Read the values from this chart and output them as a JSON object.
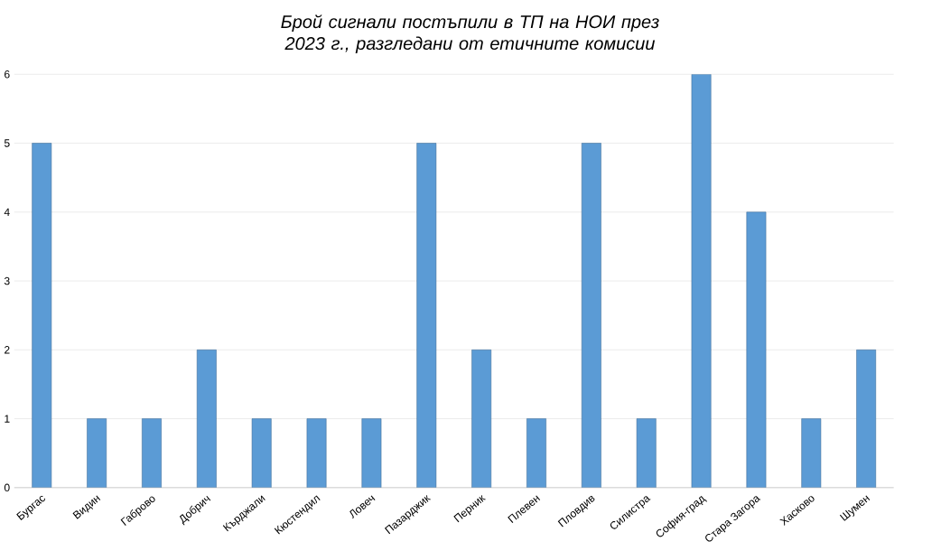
{
  "chart_data": {
    "type": "bar",
    "title": "Брой сигнали постъпили в ТП на НОИ през 2023 г., разгледани от етичните комисии",
    "categories": [
      "Бургас",
      "Видин",
      "Габрово",
      "Добрич",
      "Кърджали",
      "Кюстендил",
      "Ловеч",
      "Пазарджик",
      "Перник",
      "Плевен",
      "Пловдив",
      "Силистра",
      "София-град",
      "Стара Загора",
      "Хасково",
      "Шумен"
    ],
    "values": [
      5,
      1,
      1,
      2,
      1,
      1,
      1,
      5,
      2,
      1,
      5,
      1,
      6,
      4,
      1,
      2
    ],
    "color": "#5b9bd5",
    "ylim": [
      0,
      6
    ],
    "yticks": [
      0,
      1,
      2,
      3,
      4,
      5,
      6
    ],
    "grid": "y"
  }
}
